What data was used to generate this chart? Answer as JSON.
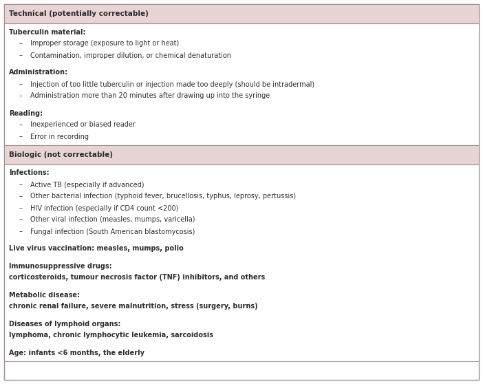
{
  "header_bg": "#e8d4d4",
  "white_bg": "#ffffff",
  "border_color": "#a09090",
  "text_color": "#2c2c2c",
  "header_fs": 7.5,
  "body_fs": 7.0,
  "sections": [
    {
      "type": "header",
      "text": "Technical (potentially correctable)"
    },
    {
      "type": "body",
      "content": [
        {
          "kind": "bold_label",
          "text": "Tuberculin material:"
        },
        {
          "kind": "bullet",
          "text": "Improper storage (exposure to light or heat)"
        },
        {
          "kind": "bullet",
          "text": "Contamination, improper dilution, or chemical denaturation"
        },
        {
          "kind": "spacer"
        },
        {
          "kind": "bold_label",
          "text": "Administration:"
        },
        {
          "kind": "bullet",
          "text": "Injection of too little tuberculin or injection made too deeply (should be intradermal)"
        },
        {
          "kind": "bullet",
          "text": "Administration more than 20 minutes after drawing up into the syringe"
        },
        {
          "kind": "spacer"
        },
        {
          "kind": "bold_label",
          "text": "Reading:"
        },
        {
          "kind": "bullet",
          "text": "Inexperienced or biased reader"
        },
        {
          "kind": "bullet",
          "text": "Error in recording"
        }
      ]
    },
    {
      "type": "header",
      "text": "Biologic (not correctable)"
    },
    {
      "type": "body",
      "content": [
        {
          "kind": "bold_label",
          "text": "Infections:"
        },
        {
          "kind": "bullet",
          "text": "Active TB (especially if advanced)"
        },
        {
          "kind": "bullet",
          "text": "Other bacterial infection (typhoid fever, brucellosis, typhus, leprosy, pertussis)"
        },
        {
          "kind": "bullet",
          "text": "HIV infection (especially if CD4 count <200)"
        },
        {
          "kind": "bullet",
          "text": "Other viral infection (measles, mumps, varicella)"
        },
        {
          "kind": "bullet",
          "text": "Fungal infection (South American blastomycosis)"
        },
        {
          "kind": "spacer"
        },
        {
          "kind": "bold_only",
          "text": "Live virus vaccination: measles, mumps, polio"
        },
        {
          "kind": "spacer"
        },
        {
          "kind": "bold_label",
          "text": "Immunosuppressive drugs:"
        },
        {
          "kind": "bold_only",
          "text": "corticosteroids, tumour necrosis factor (TNF) inhibitors, and others"
        },
        {
          "kind": "spacer"
        },
        {
          "kind": "bold_label",
          "text": "Metabolic disease:"
        },
        {
          "kind": "bold_only",
          "text": "chronic renal failure, severe malnutrition, stress (surgery, burns)"
        },
        {
          "kind": "spacer"
        },
        {
          "kind": "bold_label",
          "text": "Diseases of lymphoid organs:"
        },
        {
          "kind": "bold_only",
          "text": "lymphoma, chronic lymphocytic leukemia, sarcoidosis"
        },
        {
          "kind": "spacer"
        },
        {
          "kind": "bold_only",
          "text": "Age: infants <6 months, the elderly"
        }
      ]
    }
  ]
}
